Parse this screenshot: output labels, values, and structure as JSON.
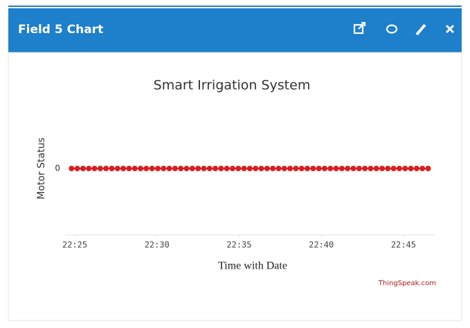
{
  "header": {
    "title": "Field 5 Chart"
  },
  "chart_data": {
    "type": "line",
    "title": "Smart Irrigation System",
    "x_label": "Time with Date",
    "y_label": "Motor Status",
    "x": [
      1344.8,
      1345.15,
      1345.5,
      1345.85,
      1346.2,
      1346.55,
      1346.9,
      1347.25,
      1347.6,
      1347.95,
      1348.3,
      1348.65,
      1349.0,
      1349.35,
      1349.7,
      1350.05,
      1350.4,
      1350.75,
      1351.1,
      1351.45,
      1351.8,
      1352.15,
      1352.5,
      1352.85,
      1353.2,
      1353.55,
      1353.9,
      1354.25,
      1354.6,
      1354.95,
      1355.3,
      1355.65,
      1356.0,
      1356.35,
      1356.7,
      1357.05,
      1357.4,
      1357.75,
      1358.1,
      1358.45,
      1358.8,
      1359.15,
      1359.5,
      1359.85,
      1360.2,
      1360.55,
      1360.9,
      1361.25,
      1361.6,
      1361.95,
      1362.3,
      1362.65,
      1363.0,
      1363.35,
      1363.7,
      1364.05,
      1364.4,
      1364.75,
      1365.1,
      1365.45,
      1365.8,
      1366.15,
      1366.5
    ],
    "series": [
      {
        "color": "#d62020",
        "values": [
          0,
          0,
          0,
          0,
          0,
          0,
          0,
          0,
          0,
          0,
          0,
          0,
          0,
          0,
          0,
          0,
          0,
          0,
          0,
          0,
          0,
          0,
          0,
          0,
          0,
          0,
          0,
          0,
          0,
          0,
          0,
          0,
          0,
          0,
          0,
          0,
          0,
          0,
          0,
          0,
          0,
          0,
          0,
          0,
          0,
          0,
          0,
          0,
          0,
          0,
          0,
          0,
          0,
          0,
          0,
          0,
          0,
          0,
          0,
          0,
          0,
          0,
          0
        ]
      }
    ],
    "xlim": [
      1344.45,
      1366.9
    ],
    "xticks": [
      {
        "value": 1345,
        "label": "22:25"
      },
      {
        "value": 1350,
        "label": "22:30"
      },
      {
        "value": 1355,
        "label": "22:35"
      },
      {
        "value": 1360,
        "label": "22:40"
      },
      {
        "value": 1365,
        "label": "22:45"
      }
    ],
    "ylim": [
      -1,
      1
    ],
    "yticks": [
      0
    ]
  },
  "credit": "ThingSpeak.com"
}
